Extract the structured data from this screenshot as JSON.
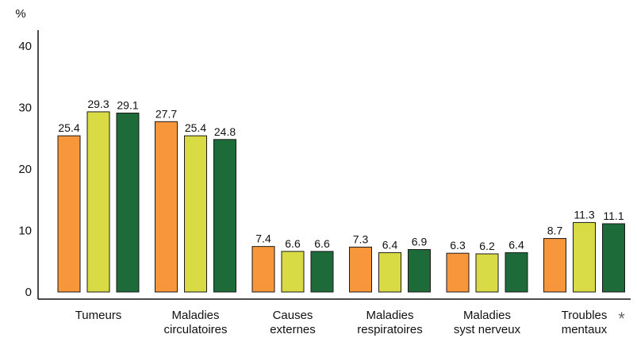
{
  "chart_data": {
    "type": "bar",
    "ylabel": "%",
    "ylim": [
      0,
      40
    ],
    "yticks": [
      0,
      10,
      20,
      30,
      40
    ],
    "grid": false,
    "legend": "none",
    "categories": [
      [
        "Tumeurs"
      ],
      [
        "Maladies",
        "circulatoires"
      ],
      [
        "Causes",
        "externes"
      ],
      [
        "Maladies",
        "respiratoires"
      ],
      [
        "Maladies",
        "syst nerveux"
      ],
      [
        "Troubles",
        "mentaux"
      ]
    ],
    "series": [
      {
        "color": "#F7963A",
        "values": [
          25.4,
          27.7,
          7.4,
          7.3,
          6.3,
          8.7
        ]
      },
      {
        "color": "#D9DB45",
        "values": [
          29.3,
          25.4,
          6.6,
          6.4,
          6.2,
          11.3
        ]
      },
      {
        "color": "#1D6B38",
        "values": [
          29.1,
          24.8,
          6.6,
          6.9,
          6.4,
          11.1
        ]
      }
    ],
    "annotations": [
      {
        "category_index": 5,
        "text": "*"
      }
    ]
  }
}
